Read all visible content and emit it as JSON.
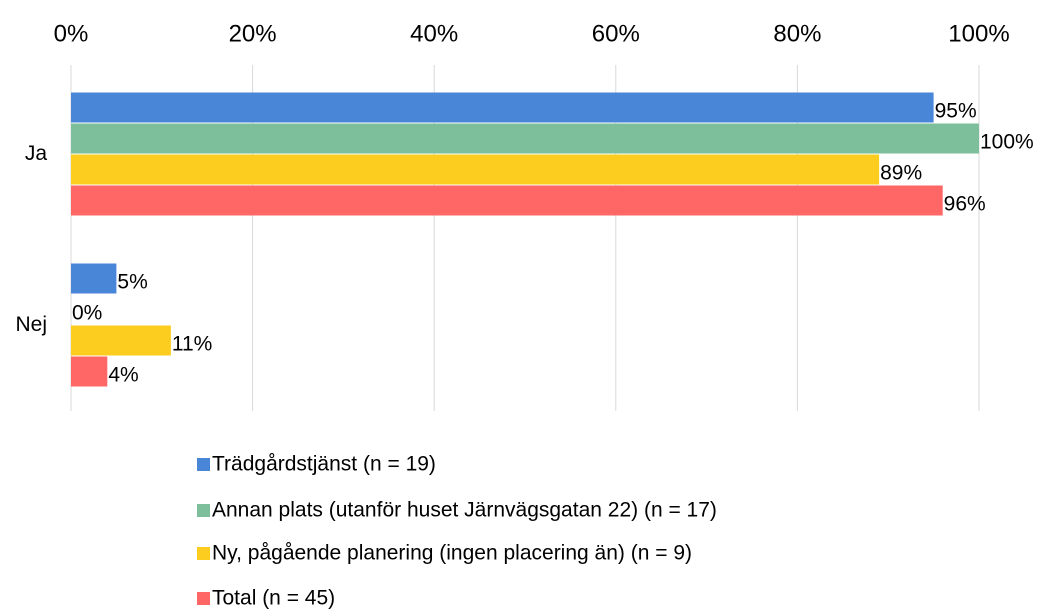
{
  "chart_data": {
    "type": "bar",
    "orientation": "horizontal",
    "categories": [
      "Ja",
      "Nej"
    ],
    "series": [
      {
        "name": "Trädgårdstjänst (n = 19)",
        "color": "#4a86d8",
        "values": [
          95,
          5
        ],
        "value_labels": [
          "95%",
          "5%"
        ]
      },
      {
        "name": "Annan plats (utanför huset Järnvägsgatan 22) (n = 17)",
        "color": "#7dbf9a",
        "values": [
          100,
          0
        ],
        "value_labels": [
          "100%",
          "0%"
        ]
      },
      {
        "name": "Ny, pågående planering (ingen placering än) (n = 9)",
        "color": "#fccc1e",
        "values": [
          89,
          11
        ],
        "value_labels": [
          "89%",
          "11%"
        ]
      },
      {
        "name": "Total (n = 45)",
        "color": "#ff6666",
        "values": [
          96,
          4
        ],
        "value_labels": [
          "96%",
          "4%"
        ]
      }
    ],
    "xlim": [
      0,
      100
    ],
    "xticks": [
      {
        "value": 0,
        "label": "0%"
      },
      {
        "value": 20,
        "label": "20%"
      },
      {
        "value": 40,
        "label": "40%"
      },
      {
        "value": 60,
        "label": "60%"
      },
      {
        "value": 80,
        "label": "80%"
      },
      {
        "value": 100,
        "label": "100%"
      }
    ],
    "grid": true,
    "legend": "bottom"
  }
}
